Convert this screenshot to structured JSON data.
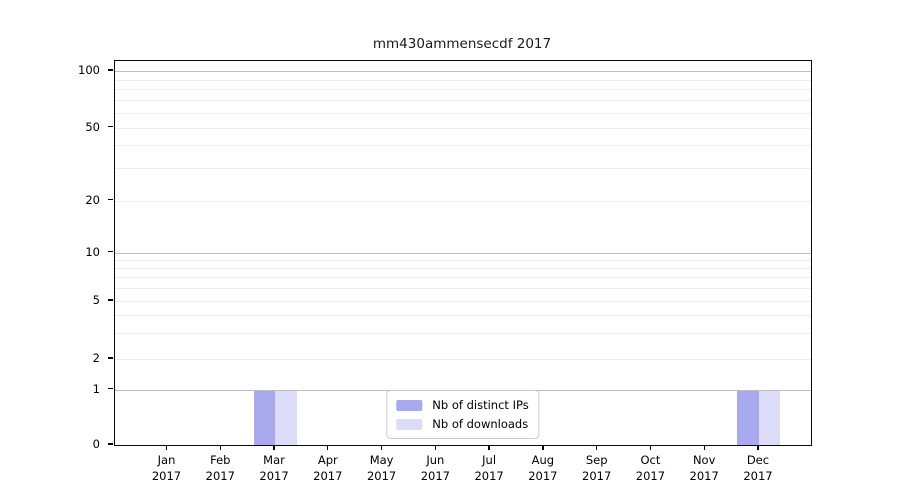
{
  "figure": {
    "title": "mm430ammensecdf 2017"
  },
  "chart_data": {
    "type": "bar",
    "title": "mm430ammensecdf 2017",
    "categories": [
      "Jan 2017",
      "Feb 2017",
      "Mar 2017",
      "Apr 2017",
      "May 2017",
      "Jun 2017",
      "Jul 2017",
      "Aug 2017",
      "Sep 2017",
      "Oct 2017",
      "Nov 2017",
      "Dec 2017"
    ],
    "series": [
      {
        "name": "Nb of distinct IPs",
        "color": "#a9a9f0",
        "values": [
          0,
          0,
          1,
          0,
          0,
          0,
          0,
          0,
          0,
          0,
          0,
          1
        ]
      },
      {
        "name": "Nb of downloads",
        "color": "#dcdcf8",
        "values": [
          0,
          0,
          1,
          0,
          0,
          0,
          0,
          0,
          0,
          0,
          0,
          1
        ]
      }
    ],
    "xlabel": "",
    "ylabel": "",
    "yscale": "log-like",
    "ylim": [
      0,
      120
    ],
    "yticks": [
      0,
      1,
      2,
      5,
      10,
      20,
      50,
      100
    ],
    "grid_major": [
      1,
      10,
      100
    ],
    "grid_minor": [
      2,
      3,
      4,
      5,
      6,
      7,
      8,
      9,
      20,
      30,
      40,
      50,
      60,
      70,
      80,
      90
    ],
    "grid": "on",
    "legend_position": "lower center"
  }
}
